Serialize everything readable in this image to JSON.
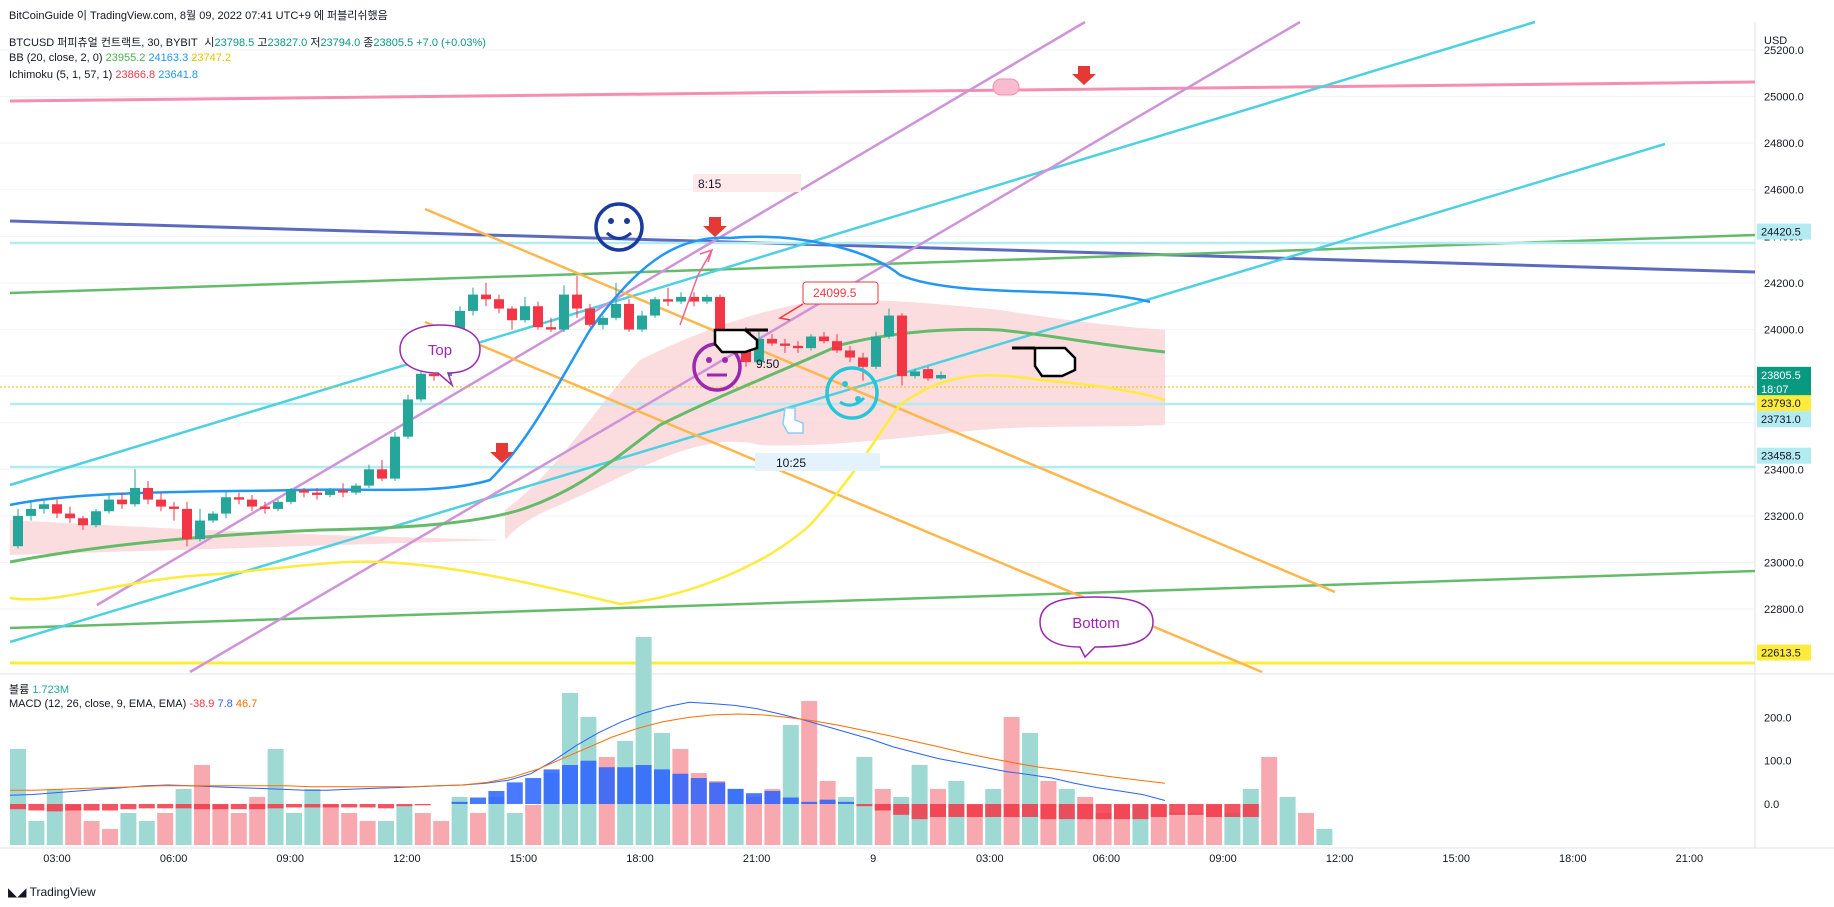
{
  "top_caption": "BitCoinGuide 이 TradingView.com, 8월 09, 2022 07:41 UTC+9 에 퍼블리쉬했음",
  "symbol": {
    "name": "BTCUSD 퍼피츄얼 컨트랙트, 30, BYBIT",
    "open_label": "시",
    "open": "23798.5",
    "high_label": "고",
    "high": "23827.0",
    "low_label": "저",
    "low": "23794.0",
    "close_label": "종",
    "close": "23805.5",
    "change": "+7.0 (+0.03%)"
  },
  "bb": {
    "label": "BB (20, close, 2, 0)",
    "basis": "23955.2",
    "upper": "24163.3",
    "lower": "23747.2"
  },
  "ichimoku": {
    "label": "Ichimoku (5, 1, 57, 1)",
    "a": "23866.8",
    "b": "23641.8"
  },
  "volume_label": "볼륨",
  "volume_value": "1.723M",
  "macd": {
    "label": "MACD (12, 26, close, 9, EMA, EMA)",
    "hist": "-38.9",
    "macd": "7.8",
    "signal": "46.7"
  },
  "currency": "USD",
  "footer_brand": "TradingView",
  "annotations": {
    "top": "Top",
    "bottom": "Bottom",
    "time1": "8:15",
    "time2": "9:50",
    "time3": "10:25",
    "price_note": "24099.5"
  },
  "colors": {
    "up": "#26a69a",
    "down": "#f23645",
    "bb_upper": "#2196f3",
    "bb_basis": "#4caf50",
    "bb_lower": "#ffeb3b",
    "cloud": "#f9d1d4"
  },
  "chart_data": {
    "type": "candlestick",
    "y_price_range": [
      22530,
      25320
    ],
    "y_price_ticks": [
      "25200.0",
      "25000.0",
      "24800.0",
      "24600.0",
      "24400.0",
      "24200.0",
      "24000.0",
      "23800.0",
      "23600.0",
      "23400.0",
      "23200.0",
      "23000.0",
      "22800.0"
    ],
    "x_ticks": [
      "03:00",
      "06:00",
      "09:00",
      "12:00",
      "15:00",
      "18:00",
      "21:00",
      "9",
      "03:00",
      "06:00",
      "09:00",
      "12:00",
      "15:00",
      "18:00",
      "21:00"
    ],
    "price_labels": [
      {
        "value": "24420.5",
        "price": 24420.5,
        "bg": "#b2ebf2",
        "fg": "#131722"
      },
      {
        "value": "23805.5",
        "price": 23805.5,
        "bg": "#089981",
        "fg": "#ffffff"
      },
      {
        "value": "18:07",
        "price": 23745,
        "bg": "#089981",
        "fg": "#ffffff"
      },
      {
        "value": "23793.0",
        "price": 23684,
        "bg": "#ffeb3b",
        "fg": "#131722"
      },
      {
        "value": "23731.0",
        "price": 23615,
        "bg": "#b2ebf2",
        "fg": "#131722"
      },
      {
        "value": "23458.5",
        "price": 23458.5,
        "bg": "#b2ebf2",
        "fg": "#131722"
      },
      {
        "value": "22613.5",
        "price": 22613.5,
        "bg": "#ffeb3b",
        "fg": "#131722"
      }
    ],
    "macd_ticks": [
      "200.0",
      "100.0",
      "0.0"
    ],
    "macd_range": [
      -85,
      245
    ],
    "candles": [
      {
        "o": 23070,
        "h": 23230,
        "c": 23200,
        "l": 23060
      },
      {
        "o": 23200,
        "h": 23260,
        "c": 23230,
        "l": 23180
      },
      {
        "o": 23230,
        "h": 23270,
        "c": 23250,
        "l": 23210
      },
      {
        "o": 23250,
        "h": 23270,
        "c": 23210,
        "l": 23190
      },
      {
        "o": 23210,
        "h": 23240,
        "c": 23190,
        "l": 23170
      },
      {
        "o": 23190,
        "h": 23200,
        "c": 23160,
        "l": 23140
      },
      {
        "o": 23160,
        "h": 23230,
        "c": 23220,
        "l": 23150
      },
      {
        "o": 23220,
        "h": 23290,
        "c": 23270,
        "l": 23210
      },
      {
        "o": 23270,
        "h": 23300,
        "c": 23250,
        "l": 23230
      },
      {
        "o": 23250,
        "h": 23400,
        "c": 23320,
        "l": 23240
      },
      {
        "o": 23320,
        "h": 23350,
        "c": 23270,
        "l": 23250
      },
      {
        "o": 23270,
        "h": 23300,
        "c": 23240,
        "l": 23220
      },
      {
        "o": 23240,
        "h": 23260,
        "c": 23230,
        "l": 23180
      },
      {
        "o": 23230,
        "h": 23260,
        "c": 23100,
        "l": 23070
      },
      {
        "o": 23100,
        "h": 23230,
        "c": 23180,
        "l": 23090
      },
      {
        "o": 23180,
        "h": 23220,
        "c": 23210,
        "l": 23170
      },
      {
        "o": 23210,
        "h": 23310,
        "c": 23280,
        "l": 23190
      },
      {
        "o": 23280,
        "h": 23300,
        "c": 23270,
        "l": 23250
      },
      {
        "o": 23270,
        "h": 23290,
        "c": 23240,
        "l": 23220
      },
      {
        "o": 23240,
        "h": 23260,
        "c": 23230,
        "l": 23210
      },
      {
        "o": 23230,
        "h": 23270,
        "c": 23260,
        "l": 23220
      },
      {
        "o": 23260,
        "h": 23320,
        "c": 23310,
        "l": 23250
      },
      {
        "o": 23310,
        "h": 23320,
        "c": 23300,
        "l": 23280
      },
      {
        "o": 23300,
        "h": 23320,
        "c": 23290,
        "l": 23270
      },
      {
        "o": 23290,
        "h": 23320,
        "c": 23310,
        "l": 23280
      },
      {
        "o": 23310,
        "h": 23340,
        "c": 23300,
        "l": 23280
      },
      {
        "o": 23300,
        "h": 23340,
        "c": 23330,
        "l": 23290
      },
      {
        "o": 23330,
        "h": 23420,
        "c": 23400,
        "l": 23320
      },
      {
        "o": 23400,
        "h": 23440,
        "c": 23360,
        "l": 23350
      },
      {
        "o": 23360,
        "h": 23560,
        "c": 23540,
        "l": 23350
      },
      {
        "o": 23540,
        "h": 23720,
        "c": 23700,
        "l": 23530
      },
      {
        "o": 23700,
        "h": 23820,
        "c": 23810,
        "l": 23690
      },
      {
        "o": 23810,
        "h": 23840,
        "c": 23800,
        "l": 23780
      },
      {
        "o": 23800,
        "h": 23900,
        "c": 23890,
        "l": 23790
      },
      {
        "o": 23890,
        "h": 24100,
        "c": 24080,
        "l": 23880
      },
      {
        "o": 24080,
        "h": 24180,
        "c": 24150,
        "l": 24060
      },
      {
        "o": 24150,
        "h": 24200,
        "c": 24130,
        "l": 24100
      },
      {
        "o": 24130,
        "h": 24150,
        "c": 24090,
        "l": 24070
      },
      {
        "o": 24090,
        "h": 24100,
        "c": 24040,
        "l": 24000
      },
      {
        "o": 24040,
        "h": 24140,
        "c": 24100,
        "l": 24030
      },
      {
        "o": 24100,
        "h": 24120,
        "c": 24010,
        "l": 24000
      },
      {
        "o": 24010,
        "h": 24050,
        "c": 24000,
        "l": 23990
      },
      {
        "o": 24000,
        "h": 24190,
        "c": 24150,
        "l": 23990
      },
      {
        "o": 24150,
        "h": 24230,
        "c": 24090,
        "l": 24050
      },
      {
        "o": 24090,
        "h": 24110,
        "c": 24020,
        "l": 24010
      },
      {
        "o": 24020,
        "h": 24060,
        "c": 24050,
        "l": 24000
      },
      {
        "o": 24050,
        "h": 24200,
        "c": 24110,
        "l": 24040
      },
      {
        "o": 24110,
        "h": 24130,
        "c": 24000,
        "l": 23990
      },
      {
        "o": 24000,
        "h": 24080,
        "c": 24060,
        "l": 23990
      },
      {
        "o": 24060,
        "h": 24140,
        "c": 24130,
        "l": 24050
      },
      {
        "o": 24130,
        "h": 24180,
        "c": 24120,
        "l": 24100
      },
      {
        "o": 24120,
        "h": 24160,
        "c": 24140,
        "l": 24110
      },
      {
        "o": 24140,
        "h": 24160,
        "c": 24120,
        "l": 24100
      },
      {
        "o": 24120,
        "h": 24150,
        "c": 24140,
        "l": 24110
      },
      {
        "o": 24140,
        "h": 24150,
        "c": 23960,
        "l": 23950
      },
      {
        "o": 23960,
        "h": 24000,
        "c": 23990,
        "l": 23940
      },
      {
        "o": 23990,
        "h": 24010,
        "c": 23860,
        "l": 23840
      },
      {
        "o": 23860,
        "h": 23990,
        "c": 23960,
        "l": 23850
      },
      {
        "o": 23960,
        "h": 23980,
        "c": 23940,
        "l": 23930
      },
      {
        "o": 23940,
        "h": 23960,
        "c": 23930,
        "l": 23900
      },
      {
        "o": 23930,
        "h": 23950,
        "c": 23920,
        "l": 23900
      },
      {
        "o": 23920,
        "h": 23980,
        "c": 23970,
        "l": 23910
      },
      {
        "o": 23970,
        "h": 23990,
        "c": 23950,
        "l": 23940
      },
      {
        "o": 23950,
        "h": 23980,
        "c": 23910,
        "l": 23900
      },
      {
        "o": 23910,
        "h": 23930,
        "c": 23880,
        "l": 23860
      },
      {
        "o": 23880,
        "h": 23900,
        "c": 23840,
        "l": 23780
      },
      {
        "o": 23840,
        "h": 23990,
        "c": 23970,
        "l": 23830
      },
      {
        "o": 23970,
        "h": 24090,
        "c": 24060,
        "l": 23960
      },
      {
        "o": 24060,
        "h": 24070,
        "c": 23800,
        "l": 23760
      },
      {
        "o": 23800,
        "h": 23830,
        "c": 23820,
        "l": 23790
      },
      {
        "o": 23830,
        "h": 23840,
        "c": 23790,
        "l": 23780
      },
      {
        "o": 23790,
        "h": 23820,
        "c": 23805,
        "l": 23785
      }
    ],
    "volume": [
      60,
      15,
      35,
      25,
      15,
      10,
      20,
      15,
      20,
      35,
      50,
      25,
      20,
      30,
      60,
      20,
      35,
      25,
      20,
      15,
      15,
      25,
      20,
      15,
      30,
      20,
      30,
      20,
      25,
      45,
      95,
      80,
      55,
      65,
      130,
      70,
      60,
      45,
      40,
      35,
      30,
      35,
      75,
      90,
      40,
      30,
      55,
      35,
      30,
      50,
      35,
      40,
      25,
      35,
      80,
      70,
      40,
      35,
      30,
      20,
      25,
      25,
      25,
      20,
      20,
      25,
      20,
      35,
      55,
      30,
      20,
      10
    ],
    "macd_hist": [
      -12,
      -15,
      -17,
      -15,
      -15,
      -15,
      -12,
      -10,
      -10,
      -10,
      -12,
      -12,
      -12,
      -12,
      -10,
      -8,
      -8,
      -8,
      -8,
      -8,
      -10,
      -5,
      -3,
      0,
      5,
      15,
      30,
      50,
      60,
      80,
      90,
      100,
      85,
      85,
      90,
      80,
      70,
      60,
      50,
      35,
      25,
      30,
      15,
      5,
      10,
      5,
      -5,
      -15,
      -25,
      -35,
      -30,
      -30,
      -30,
      -30,
      -30,
      -30,
      -35,
      -35,
      -35,
      -35,
      -35,
      -35,
      -30,
      -25,
      -25,
      -30,
      -30,
      -30
    ],
    "macd_line": [
      20,
      22,
      26,
      30,
      34,
      38,
      42,
      44,
      42,
      40,
      38,
      36,
      34,
      32,
      32,
      34,
      36,
      38,
      40,
      42,
      44,
      48,
      55,
      70,
      100,
      135,
      165,
      190,
      210,
      225,
      235,
      232,
      228,
      220,
      208,
      195,
      180,
      165,
      150,
      132,
      118,
      105,
      95,
      85,
      75,
      68,
      60,
      48,
      38,
      30,
      22,
      8
    ],
    "signal_line": [
      32,
      32,
      34,
      36,
      38,
      40,
      42,
      42,
      42,
      42,
      42,
      42,
      40,
      40,
      40,
      40,
      40,
      42,
      44,
      50,
      62,
      80,
      105,
      130,
      155,
      175,
      190,
      200,
      206,
      208,
      206,
      200,
      192,
      182,
      170,
      158,
      145,
      132,
      118,
      106,
      95,
      85,
      78,
      70,
      62,
      55,
      48
    ]
  }
}
